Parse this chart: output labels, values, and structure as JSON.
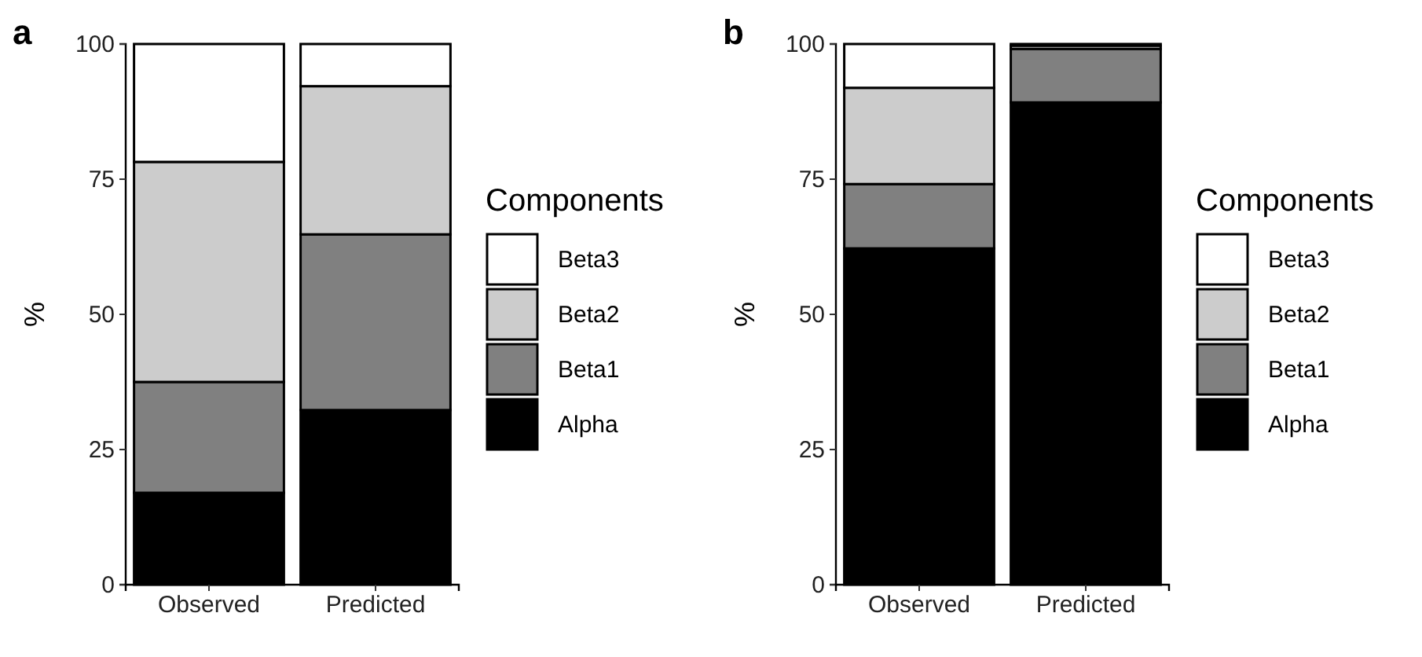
{
  "chart_data": [
    {
      "type": "bar",
      "title": "a",
      "ylabel": "%",
      "legend_title": "Components",
      "categories": [
        "Observed",
        "Predicted"
      ],
      "stacked": true,
      "ylim": [
        0,
        100
      ],
      "yticks": [
        0,
        25,
        50,
        75,
        100
      ],
      "grid": false,
      "legend": "right",
      "series": [
        {
          "name": "Alpha",
          "color": "#000000",
          "values": [
            17,
            32.3
          ]
        },
        {
          "name": "Beta1",
          "color": "#808080",
          "values": [
            20.5,
            32.5
          ]
        },
        {
          "name": "Beta2",
          "color": "#cccccc",
          "values": [
            40.7,
            27.4
          ]
        },
        {
          "name": "Beta3",
          "color": "#ffffff",
          "values": [
            21.8,
            7.8
          ]
        }
      ]
    },
    {
      "type": "bar",
      "title": "b",
      "ylabel": "%",
      "legend_title": "Components",
      "categories": [
        "Observed",
        "Predicted"
      ],
      "stacked": true,
      "ylim": [
        0,
        100
      ],
      "yticks": [
        0,
        25,
        50,
        75,
        100
      ],
      "grid": false,
      "legend": "right",
      "series": [
        {
          "name": "Alpha",
          "color": "#000000",
          "values": [
            62.2,
            89.2
          ]
        },
        {
          "name": "Beta1",
          "color": "#808080",
          "values": [
            11.9,
            9.9
          ]
        },
        {
          "name": "Beta2",
          "color": "#cccccc",
          "values": [
            17.8,
            0.6
          ]
        },
        {
          "name": "Beta3",
          "color": "#ffffff",
          "values": [
            8.1,
            0.3
          ]
        }
      ]
    }
  ]
}
